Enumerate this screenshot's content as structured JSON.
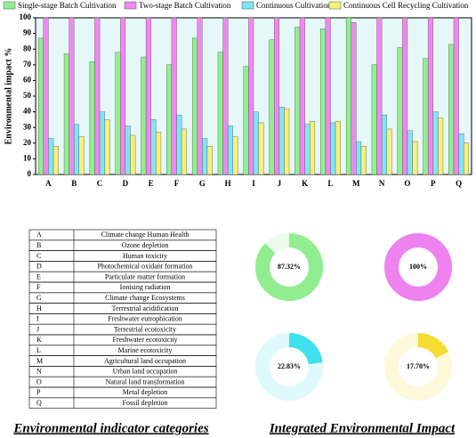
{
  "chart_data": [
    {
      "type": "bar",
      "ylabel": "Environmental impact %",
      "categories": [
        "A",
        "B",
        "C",
        "D",
        "E",
        "F",
        "G",
        "H",
        "I",
        "J",
        "K",
        "L",
        "M",
        "N",
        "O",
        "P",
        "Q"
      ],
      "series": [
        {
          "name": "Single-stage Batch Cultivation",
          "color": "#90f090",
          "values": [
            87,
            77,
            72,
            78,
            75,
            70,
            87,
            78,
            69,
            86,
            94,
            93,
            100,
            70,
            81,
            74,
            83
          ]
        },
        {
          "name": "Two-stage Batch Cultivation",
          "color": "#f088f0",
          "values": [
            100,
            100,
            100,
            100,
            100,
            100,
            100,
            100,
            100,
            100,
            100,
            100,
            97,
            100,
            100,
            100,
            100
          ]
        },
        {
          "name": "Continuous Cultivation",
          "color": "#80e6f6",
          "values": [
            23,
            32,
            40,
            31,
            35,
            38,
            23,
            31,
            40,
            43,
            32,
            33,
            21,
            38,
            28,
            40,
            26
          ]
        },
        {
          "name": "Continuous Cell Recycling Cultivation",
          "color": "#f6f07c",
          "values": [
            18,
            24,
            35,
            25,
            27,
            29,
            18,
            24,
            33,
            42,
            34,
            34,
            18,
            29,
            21,
            36,
            20
          ]
        }
      ],
      "ylim": [
        0,
        100
      ],
      "yticks": [
        0,
        10,
        20,
        30,
        40,
        50,
        60,
        70,
        80,
        90,
        100
      ]
    },
    {
      "type": "donut",
      "values": [
        87.32
      ],
      "value_labels": [
        "87.32%"
      ],
      "color": "#90ee90"
    },
    {
      "type": "donut",
      "values": [
        100
      ],
      "value_labels": [
        "100%"
      ],
      "color": "#ee82ee"
    },
    {
      "type": "donut",
      "values": [
        22.83
      ],
      "value_labels": [
        "22.83%"
      ],
      "color": "#40e0f0"
    },
    {
      "type": "donut",
      "values": [
        17.7
      ],
      "value_labels": [
        "17.70%"
      ],
      "color": "#f5dc30"
    }
  ],
  "table": {
    "rows": [
      [
        "A",
        "Climate change Human Health"
      ],
      [
        "B",
        "Ozone depletion"
      ],
      [
        "C",
        "Human toxicity"
      ],
      [
        "D",
        "Photochemical oxidant formation"
      ],
      [
        "E",
        "Particulate matter formation"
      ],
      [
        "F",
        "Ionising radiation"
      ],
      [
        "G",
        "Climate change Ecosystems"
      ],
      [
        "H",
        "Terrestrial acidification"
      ],
      [
        "I",
        "Freshwater eutrophication"
      ],
      [
        "J",
        "Terrestrial ecotoxicity"
      ],
      [
        "K",
        "Freshwater ecotoxicity"
      ],
      [
        "L",
        "Marine ecotoxicity"
      ],
      [
        "M",
        "Agricultural land occupation"
      ],
      [
        "N",
        "Urban land occupation"
      ],
      [
        "O",
        "Natural land transformation"
      ],
      [
        "P",
        "Metal depletion"
      ],
      [
        "Q",
        "Fossil depletion"
      ]
    ]
  },
  "captions": [
    "Environmental indicator categories",
    "Integrated Environmental Impact"
  ]
}
